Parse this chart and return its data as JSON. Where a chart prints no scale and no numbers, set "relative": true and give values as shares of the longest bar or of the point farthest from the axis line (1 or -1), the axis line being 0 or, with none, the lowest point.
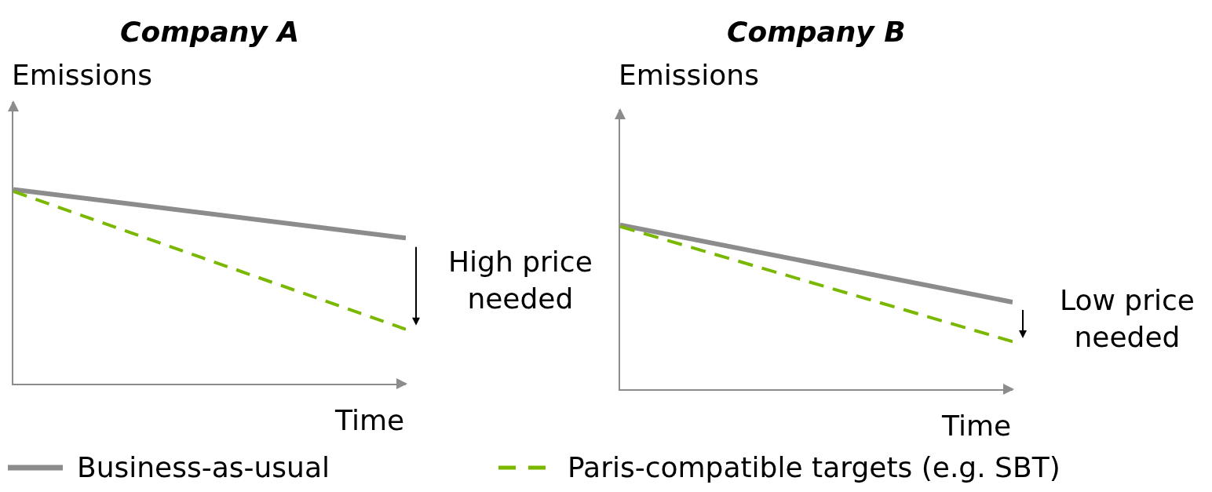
{
  "chart_data": [
    {
      "type": "line",
      "title": "Company A",
      "xlabel": "Time",
      "ylabel": "Emissions",
      "relative": true,
      "categories": [
        null,
        null
      ],
      "legend": "bottom",
      "annotations": [
        "High price\nneeded"
      ],
      "series": [
        {
          "name": "Business-as-usual",
          "color": "#8c8c8c",
          "line_style": "solid",
          "values": [
            1,
            0.75
          ]
        },
        {
          "name": "Paris-compatible targets (e.g. SBT)",
          "color": "#7ab800",
          "line_style": "dashed",
          "values": [
            0.99,
            0.28
          ]
        }
      ]
    },
    {
      "type": "line",
      "title": "Company B",
      "xlabel": "Time",
      "ylabel": "Emissions",
      "relative": true,
      "categories": [
        null,
        null
      ],
      "legend": "bottom",
      "annotations": [
        "Low price\nneeded"
      ],
      "series": [
        {
          "name": "Business-as-usual",
          "color": "#8c8c8c",
          "line_style": "solid",
          "values": [
            1,
            0.53
          ]
        },
        {
          "name": "Paris-compatible targets (e.g. SBT)",
          "color": "#7ab800",
          "line_style": "dashed",
          "values": [
            0.99,
            0.29
          ]
        }
      ]
    }
  ]
}
